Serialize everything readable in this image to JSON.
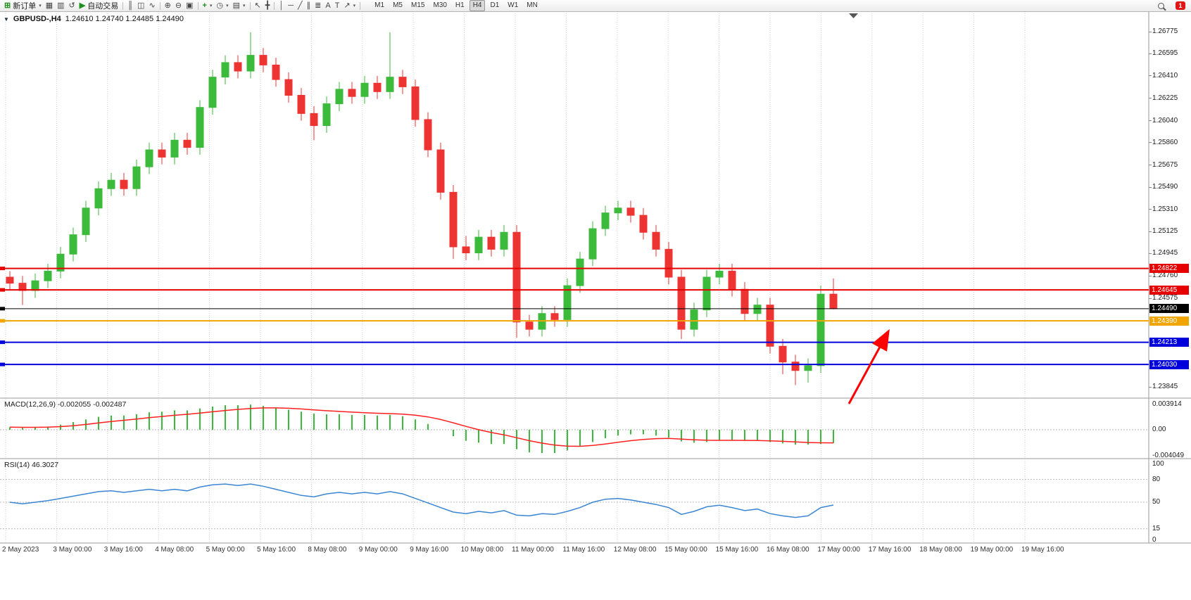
{
  "window": {
    "badge": "1"
  },
  "toolbar": {
    "items": [
      {
        "name": "new-order-button",
        "icon": "new-order",
        "label": "新订单",
        "caret": true
      },
      {
        "name": "market-watch-button",
        "icon": "market-watch"
      },
      {
        "name": "data-window-button",
        "icon": "data-window"
      },
      {
        "name": "navigator-button",
        "icon": "navigator"
      },
      {
        "name": "autotrading-button",
        "icon": "autotrading",
        "label": "自动交易"
      },
      {
        "sep": true
      },
      {
        "name": "bar-chart-button",
        "icon": "bar-chart"
      },
      {
        "name": "candlestick-chart-button",
        "icon": "candlestick"
      },
      {
        "name": "line-chart-button",
        "icon": "line-chart"
      },
      {
        "sep": true
      },
      {
        "name": "zoom-in-button",
        "icon": "zoom-in"
      },
      {
        "name": "zoom-out-button",
        "icon": "zoom-out"
      },
      {
        "name": "tile-windows-button",
        "icon": "tile-windows"
      },
      {
        "sep": true
      },
      {
        "name": "indicators-button",
        "icon": "indicators",
        "caret": true
      },
      {
        "name": "periods-button",
        "icon": "periods",
        "caret": true
      },
      {
        "name": "templates-button",
        "icon": "templates",
        "caret": true
      },
      {
        "sep": true
      },
      {
        "name": "cursor-button",
        "icon": "cursor"
      },
      {
        "name": "crosshair-button",
        "icon": "crosshair"
      },
      {
        "sep": true
      },
      {
        "name": "vertical-line-button",
        "icon": "vertical-line"
      },
      {
        "name": "horizontal-line-button",
        "icon": "horizontal-line"
      },
      {
        "name": "trendline-button",
        "icon": "trendline"
      },
      {
        "name": "channel-button",
        "icon": "channel"
      },
      {
        "name": "fibonacci-button",
        "icon": "fibonacci"
      },
      {
        "name": "text-button",
        "icon": "text"
      },
      {
        "name": "label-button",
        "icon": "label"
      },
      {
        "name": "arrows-button",
        "icon": "arrows",
        "caret": true
      },
      {
        "sep": true
      }
    ],
    "icon_glyphs": {
      "new-order": "⊞",
      "market-watch": "▦",
      "data-window": "▥",
      "navigator": "↺",
      "autotrading": "▶",
      "bar-chart": "║",
      "candlestick": "◫",
      "line-chart": "∿",
      "zoom-in": "⊕",
      "zoom-out": "⊖",
      "tile-windows": "▣",
      "indicators": "+",
      "periods": "◷",
      "templates": "▤",
      "cursor": "↖",
      "crosshair": "╋",
      "vertical-line": "│",
      "horizontal-line": "─",
      "trendline": "╱",
      "channel": "∥",
      "fibonacci": "≣",
      "text": "A",
      "label": "T",
      "arrows": "↗"
    },
    "timeframes": [
      "M1",
      "M5",
      "M15",
      "M30",
      "H1",
      "H4",
      "D1",
      "W1",
      "MN"
    ],
    "active_timeframe": "H4"
  },
  "chart": {
    "symbol_period": "GBPUSD-,H4",
    "ohlc_text": "1.24610 1.24740 1.24485 1.24490"
  },
  "chart_data": {
    "type": "candlestick",
    "symbol": "GBPUSD-",
    "timeframe": "H4",
    "open": "1.24610",
    "high": "1.24740",
    "low": "1.24485",
    "close": "1.24490",
    "colors": {
      "up": "#3cba3c",
      "down": "#ee3333",
      "macd_hist": "#3cba3c",
      "macd_signal": "#ff1f1f",
      "rsi_line": "#3a86d4",
      "grid": "#cfcfcf",
      "arrow": "#ff0000"
    },
    "price_axis_ticks": [
      1.26775,
      1.26595,
      1.2641,
      1.26225,
      1.2604,
      1.2586,
      1.25675,
      1.2549,
      1.2531,
      1.25125,
      1.24945,
      1.2476,
      1.24575,
      1.23845
    ],
    "hlines": [
      {
        "price": 1.24822,
        "label": "1.24822",
        "color": "#e60000",
        "width": 2,
        "role": "resistance-line"
      },
      {
        "price": 1.24645,
        "label": "1.24645",
        "color": "#e60000",
        "width": 2,
        "role": "resistance-line"
      },
      {
        "price": 1.2449,
        "label": "1.24490",
        "color": "#000000",
        "width": 1,
        "role": "current-price-line"
      },
      {
        "price": 1.2439,
        "label": "1.24390",
        "color": "#f0a500",
        "width": 2,
        "role": "pivot-line"
      },
      {
        "price": 1.24213,
        "label": "1.24213",
        "color": "#0000dd",
        "width": 2,
        "role": "support-line"
      },
      {
        "price": 1.2403,
        "label": "1.24030",
        "color": "#0000dd",
        "width": 2,
        "role": "support-line"
      }
    ],
    "x_labels": [
      "2 May 2023",
      "3 May 00:00",
      "3 May 16:00",
      "4 May 08:00",
      "5 May 00:00",
      "5 May 16:00",
      "8 May 08:00",
      "9 May 00:00",
      "9 May 16:00",
      "10 May 08:00",
      "11 May 00:00",
      "11 May 16:00",
      "12 May 08:00",
      "15 May 00:00",
      "15 May 16:00",
      "16 May 08:00",
      "17 May 00:00",
      "17 May 16:00",
      "18 May 08:00",
      "19 May 00:00",
      "19 May 16:00"
    ],
    "candles": [
      [
        1.2475,
        1.248,
        1.2464,
        1.247
      ],
      [
        1.247,
        1.2476,
        1.2452,
        1.2464
      ],
      [
        1.2464,
        1.2478,
        1.2458,
        1.2472
      ],
      [
        1.2472,
        1.2486,
        1.2466,
        1.248
      ],
      [
        1.248,
        1.25,
        1.2474,
        1.2494
      ],
      [
        1.2494,
        1.2516,
        1.2488,
        1.251
      ],
      [
        1.251,
        1.2538,
        1.2504,
        1.2532
      ],
      [
        1.2532,
        1.2554,
        1.2526,
        1.2548
      ],
      [
        1.2548,
        1.2561,
        1.2542,
        1.2555
      ],
      [
        1.2555,
        1.2561,
        1.2542,
        1.2548
      ],
      [
        1.2548,
        1.2572,
        1.2542,
        1.2566
      ],
      [
        1.2566,
        1.2586,
        1.256,
        1.258
      ],
      [
        1.258,
        1.2586,
        1.2568,
        1.2574
      ],
      [
        1.2574,
        1.2594,
        1.2568,
        1.2588
      ],
      [
        1.2588,
        1.2594,
        1.2576,
        1.2582
      ],
      [
        1.2582,
        1.2621,
        1.2576,
        1.2615
      ],
      [
        1.2615,
        1.2646,
        1.2609,
        1.264
      ],
      [
        1.264,
        1.2658,
        1.2634,
        1.2652
      ],
      [
        1.2652,
        1.2658,
        1.2639,
        1.2645
      ],
      [
        1.2645,
        1.2677,
        1.2639,
        1.2658
      ],
      [
        1.2658,
        1.2664,
        1.2644,
        1.265
      ],
      [
        1.265,
        1.2656,
        1.2632,
        1.2638
      ],
      [
        1.2638,
        1.2644,
        1.2619,
        1.2625
      ],
      [
        1.2625,
        1.2631,
        1.2604,
        1.261
      ],
      [
        1.261,
        1.2616,
        1.2588,
        1.26
      ],
      [
        1.26,
        1.2624,
        1.2594,
        1.2618
      ],
      [
        1.2618,
        1.2636,
        1.2612,
        1.263
      ],
      [
        1.263,
        1.2636,
        1.2618,
        1.2624
      ],
      [
        1.2624,
        1.2641,
        1.2618,
        1.2635
      ],
      [
        1.2635,
        1.2641,
        1.2622,
        1.2628
      ],
      [
        1.2628,
        1.2677,
        1.2622,
        1.264
      ],
      [
        1.264,
        1.2646,
        1.2626,
        1.2632
      ],
      [
        1.2632,
        1.2638,
        1.2599,
        1.2605
      ],
      [
        1.2605,
        1.2611,
        1.2574,
        1.258
      ],
      [
        1.258,
        1.2586,
        1.2539,
        1.2545
      ],
      [
        1.2545,
        1.2551,
        1.249,
        1.25
      ],
      [
        1.25,
        1.2509,
        1.2489,
        1.2495
      ],
      [
        1.2495,
        1.2514,
        1.2489,
        1.2508
      ],
      [
        1.2508,
        1.2514,
        1.2492,
        1.2498
      ],
      [
        1.2498,
        1.2518,
        1.2492,
        1.2512
      ],
      [
        1.2512,
        1.2518,
        1.2425,
        1.2438
      ],
      [
        1.2438,
        1.2444,
        1.2426,
        1.2432
      ],
      [
        1.2432,
        1.2451,
        1.2426,
        1.2445
      ],
      [
        1.2445,
        1.2451,
        1.2434,
        1.244
      ],
      [
        1.244,
        1.2474,
        1.2434,
        1.2468
      ],
      [
        1.2468,
        1.2496,
        1.2462,
        1.249
      ],
      [
        1.249,
        1.2521,
        1.2484,
        1.2515
      ],
      [
        1.2515,
        1.2534,
        1.2509,
        1.2528
      ],
      [
        1.2528,
        1.2538,
        1.2522,
        1.2532
      ],
      [
        1.2532,
        1.2538,
        1.252,
        1.2526
      ],
      [
        1.2526,
        1.2532,
        1.2506,
        1.2512
      ],
      [
        1.2512,
        1.2518,
        1.2492,
        1.2498
      ],
      [
        1.2498,
        1.2504,
        1.2469,
        1.2475
      ],
      [
        1.2475,
        1.2481,
        1.2424,
        1.2432
      ],
      [
        1.2432,
        1.2454,
        1.2426,
        1.2448
      ],
      [
        1.2448,
        1.2481,
        1.2442,
        1.2475
      ],
      [
        1.2475,
        1.2486,
        1.2469,
        1.248
      ],
      [
        1.248,
        1.2486,
        1.2459,
        1.2465
      ],
      [
        1.2465,
        1.2471,
        1.2439,
        1.2445
      ],
      [
        1.2445,
        1.2458,
        1.2439,
        1.2452
      ],
      [
        1.2452,
        1.2458,
        1.2412,
        1.2418
      ],
      [
        1.2418,
        1.2424,
        1.2395,
        1.2405
      ],
      [
        1.2405,
        1.2411,
        1.2386,
        1.2398
      ],
      [
        1.2398,
        1.2408,
        1.2388,
        1.2402
      ],
      [
        1.2402,
        1.2468,
        1.2396,
        1.2461
      ],
      [
        1.2461,
        1.2474,
        1.24485,
        1.2449
      ]
    ],
    "indicators": [
      {
        "name": "MACD",
        "label": "MACD(12,26,9) -0.002055 -0.002487",
        "params": "12,26,9",
        "main_value": "-0.002055",
        "signal_value": "-0.002487",
        "axis_labels": [
          "0.003914",
          "0.00",
          "-0.004049"
        ],
        "signal_period": 9,
        "values": [
          0.0004,
          0.0003,
          0.0004,
          0.0005,
          0.0008,
          0.0012,
          0.0016,
          0.002,
          0.0022,
          0.0022,
          0.0024,
          0.0027,
          0.0028,
          0.003,
          0.003,
          0.0033,
          0.0036,
          0.0038,
          0.0038,
          0.0039,
          0.0037,
          0.0034,
          0.0031,
          0.0028,
          0.0025,
          0.0024,
          0.0024,
          0.0023,
          0.0023,
          0.0022,
          0.0023,
          0.0021,
          0.0016,
          0.0009,
          0.0,
          -0.001,
          -0.0017,
          -0.002,
          -0.0022,
          -0.0022,
          -0.003,
          -0.0035,
          -0.0036,
          -0.0036,
          -0.0032,
          -0.0026,
          -0.0019,
          -0.0013,
          -0.0009,
          -0.0007,
          -0.0007,
          -0.0009,
          -0.0012,
          -0.0018,
          -0.002,
          -0.0019,
          -0.0017,
          -0.0016,
          -0.0017,
          -0.0017,
          -0.0019,
          -0.0021,
          -0.0023,
          -0.0023,
          -0.0022,
          -0.002055
        ]
      },
      {
        "name": "RSI",
        "label": "RSI(14) 46.3027",
        "params": "14",
        "value": "46.3027",
        "axis_labels": [
          "100",
          "80",
          "50",
          "15",
          "0"
        ],
        "levels": [
          80,
          50,
          15
        ],
        "values": [
          50,
          48,
          50,
          52,
          55,
          58,
          61,
          64,
          65,
          63,
          65,
          67,
          65,
          67,
          65,
          70,
          73,
          74,
          72,
          74,
          71,
          67,
          63,
          59,
          57,
          61,
          63,
          61,
          63,
          61,
          64,
          61,
          55,
          49,
          43,
          37,
          35,
          38,
          36,
          39,
          33,
          32,
          35,
          34,
          38,
          43,
          50,
          54,
          55,
          53,
          50,
          47,
          43,
          34,
          38,
          44,
          46,
          43,
          39,
          41,
          35,
          32,
          30,
          32,
          43,
          46.3
        ]
      }
    ],
    "annotation_arrow": {
      "color": "#ff0000"
    }
  }
}
